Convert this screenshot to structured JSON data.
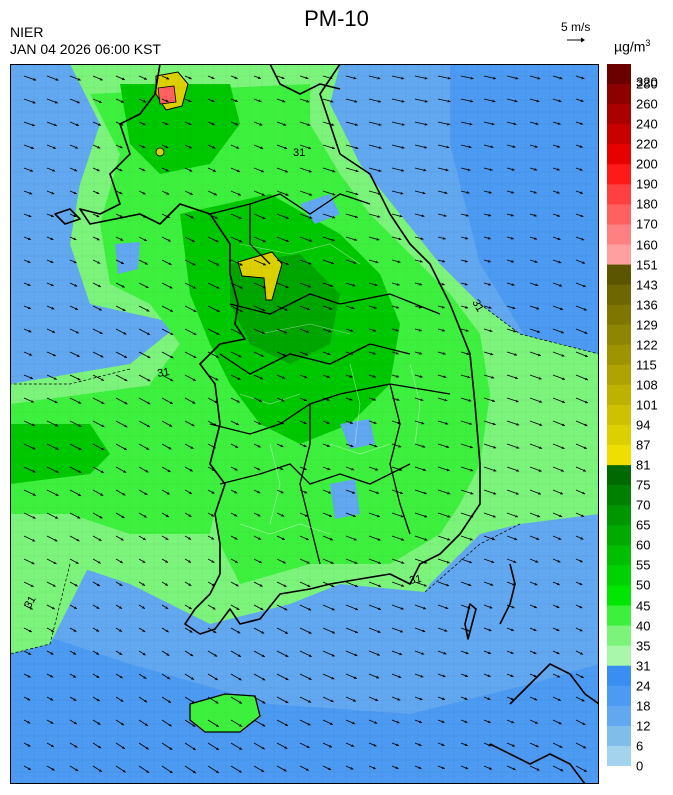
{
  "header": {
    "title": "PM-10",
    "organization": "NIER",
    "timestamp": "JAN 04 2026 06:00 KST",
    "wind_reference": "5 m/s",
    "unit_base": "µg/m",
    "unit_exp": "3"
  },
  "legend": {
    "labels": [
      "320",
      "280",
      "260",
      "240",
      "220",
      "200",
      "190",
      "180",
      "170",
      "160",
      "151",
      "143",
      "136",
      "129",
      "122",
      "115",
      "108",
      "101",
      "94",
      "87",
      "81",
      "75",
      "70",
      "65",
      "60",
      "55",
      "50",
      "45",
      "40",
      "35",
      "31",
      "24",
      "18",
      "12",
      "6",
      "0"
    ],
    "colors": [
      "#6b0000",
      "#8c0000",
      "#aa0000",
      "#c80000",
      "#e60000",
      "#ff1a1a",
      "#ff4040",
      "#ff6060",
      "#ff8080",
      "#ffa0a0",
      "#5c5500",
      "#6e6600",
      "#7e7600",
      "#8e8500",
      "#9e9400",
      "#aea300",
      "#beb200",
      "#cec100",
      "#ddd000",
      "#eedf00",
      "#006a00",
      "#008000",
      "#009600",
      "#00aa00",
      "#00be00",
      "#00d200",
      "#00e600",
      "#3ef03e",
      "#7cf47c",
      "#a9f7a9",
      "#3a8ef2",
      "#4c9af2",
      "#62a8f0",
      "#80bde8",
      "#a4d3ee"
    ]
  },
  "map": {
    "contour_label": "31",
    "regions": {
      "sea_base": "#62a8f0",
      "sea_dark": "#4c9af2",
      "land_light": "#7cf47c",
      "land_mid": "#3ef03e",
      "land_dark": "#00c800",
      "land_deep": "#00a600",
      "hotspot": "#ddd000",
      "hotspot_core": "#ff6060"
    }
  }
}
